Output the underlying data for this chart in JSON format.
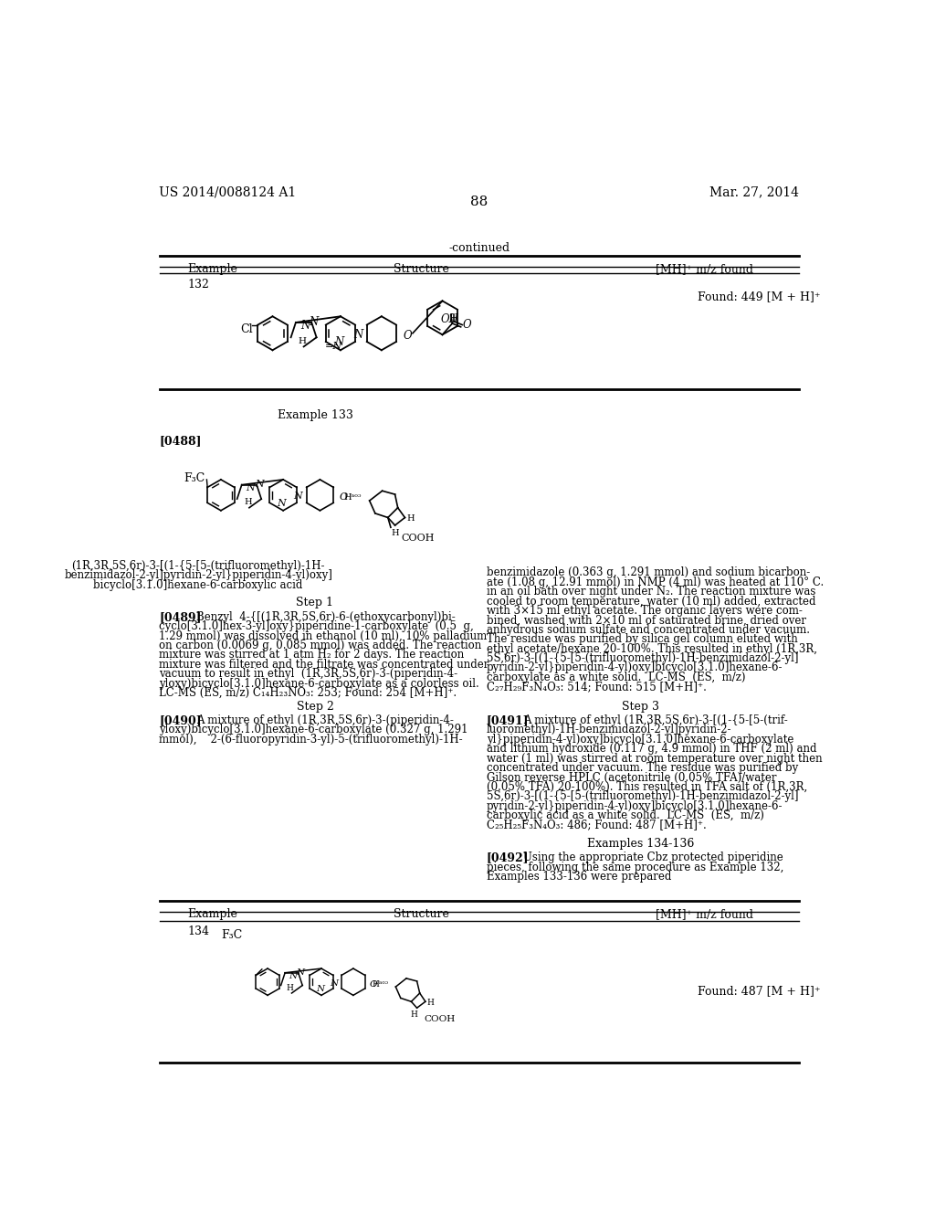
{
  "background_color": "#ffffff",
  "header_left": "US 2014/0088124 A1",
  "header_right": "Mar. 27, 2014",
  "page_number": "88",
  "continued_text": "-continued",
  "table1_headers": [
    "Example",
    "Structure",
    "[MH]⁺ m/z found"
  ],
  "table1_row1_example": "132",
  "table1_row1_mhz": "Found: 449 [M + H]⁺",
  "example133_title": "Example 133",
  "para0488_label": "[0488]",
  "compound_name_line1": "(1R,3R,5S,6r)-3-[(1-{5-[5-(trifluoromethyl)-1H-",
  "compound_name_line2": "benzimidazol-2-yl]pyridin-2-yl}piperidin-4-yl)oxy]",
  "compound_name_line3": "bicyclo[3.1.0]hexane-6-carboxylic acid",
  "step1_title": "Step 1",
  "para0489_label": "[0489]",
  "para0489_text_line1": "Benzyl  4-{[(1R,3R,5S,6r)-6-(ethoxycarbonyl)bi-",
  "para0489_text_line2": "cyclo[3.1.0]hex-3-yl]oxy}piperidine-1-carboxylate  (0.5  g,",
  "para0489_text_line3": "1.29 mmol) was dissolved in ethanol (10 ml), 10% palladium",
  "para0489_text_line4": "on carbon (0.0069 g, 0.085 mmol) was added. The reaction",
  "para0489_text_line5": "mixture was stirred at 1 atm H₂ for 2 days. The reaction",
  "para0489_text_line6": "mixture was filtered and the filtrate was concentrated under",
  "para0489_text_line7": "vacuum to result in ethyl  (1R,3R,5S,6r)-3-(piperidin-4-",
  "para0489_text_line8": "yloxy)bicyclo[3.1.0]hexane-6-carboxylate as a colorless oil.",
  "para0489_text_line9": "LC-MS (ES, m/z) C₁₄H₂₃NO₃: 253; Found: 254 [M+H]⁺.",
  "step2_title": "Step 2",
  "para0490_label": "[0490]",
  "para0490_text_line1": "A mixture of ethyl (1R,3R,5S,6r)-3-(piperidin-4-",
  "para0490_text_line2": "yloxy)bicyclo[3.1.0]hexane-6-carboxylate (0.327 g, 1.291",
  "para0490_text_line3": "mmol),    2-(6-fluoropyridin-3-yl)-5-(trifluoromethyl)-1H-",
  "right_col_line1": "benzimidazole (0.363 g, 1.291 mmol) and sodium bicarbon-",
  "right_col_line2": "ate (1.08 g, 12.91 mmol) in NMP (4 ml) was heated at 110° C.",
  "right_col_line3": "in an oil bath over night under N₂. The reaction mixture was",
  "right_col_line4": "cooled to room temperature, water (10 ml) added, extracted",
  "right_col_line5": "with 3×15 ml ethyl acetate. The organic layers were com-",
  "right_col_line6": "bined, washed with 2×10 ml of saturated brine, dried over",
  "right_col_line7": "anhydrous sodium sulfate and concentrated under vacuum.",
  "right_col_line8": "The residue was purified by silica gel column eluted with",
  "right_col_line9": "ethyl acetate/hexane 20-100%. This resulted in ethyl (1R,3R,",
  "right_col_line10": "5S,6r)-3-[(1-{5-[5-(trifluoromethyl)-1H-benzimidazol-2-yl]",
  "right_col_line11": "pyridin-2-yl}piperidin-4-yl)oxy]bicyclo[3.1.0]hexane-6-",
  "right_col_line12": "carboxylate as a white solid.  LC-MS  (ES,  m/z)",
  "right_col_line13": "C₂₇H₂₉F₃N₄O₃: 514; Found: 515 [M+H]⁺.",
  "step3_title": "Step 3",
  "para0491_label": "[0491]",
  "para0491_text_line1": "A mixture of ethyl (1R,3R,5S,6r)-3-[(1-{5-[5-(trif-",
  "para0491_text_line2": "luoromethyl)-1H-benzimidazol-2-yl]pyridin-2-",
  "para0491_text_line3": "yl}piperidin-4-yl)oxy]bicyclo[3.1.0]hexane-6-carboxylate",
  "para0491_text_line4": "and lithium hydroxide (0.117 g, 4.9 mmol) in THF (2 ml) and",
  "para0491_text_line5": "water (1 ml) was stirred at room temperature over night then",
  "para0491_text_line6": "concentrated under vacuum. The residue was purified by",
  "para0491_text_line7": "Gilson reverse HPLC (acetonitrile (0.05% TFA)/water",
  "para0491_text_line8": "(0.05% TFA) 20-100%). This resulted in TFA salt of (1R,3R,",
  "para0491_text_line9": "5S,6r)-3-[(1-{5-[5-(trifluoromethyl)-1H-benzimidazol-2-yl]",
  "para0491_text_line10": "pyridin-2-yl}piperidin-4-yl)oxy]bicyclo[3.1.0]hexane-6-",
  "para0491_text_line11": "carboxylic acid as a white solid.  LC-MS  (ES,  m/z)",
  "para0491_text_line12": "C₂₅H₂₅F₃N₄O₃: 486; Found: 487 [M+H]⁺.",
  "examples134136_title": "Examples 134-136",
  "para0492_label": "[0492]",
  "para0492_text_line1": "Using the appropriate Cbz protected piperidine",
  "para0492_text_line2": "pieces, following the same procedure as Example 132,",
  "para0492_text_line3": "Examples 133-136 were prepared",
  "table2_headers": [
    "Example",
    "Structure",
    "[MH]⁺ m/z found"
  ],
  "table2_row1_example": "134",
  "table2_row1_label": "F₃C",
  "table2_row1_mhz": "Found: 487 [M + H]⁺"
}
